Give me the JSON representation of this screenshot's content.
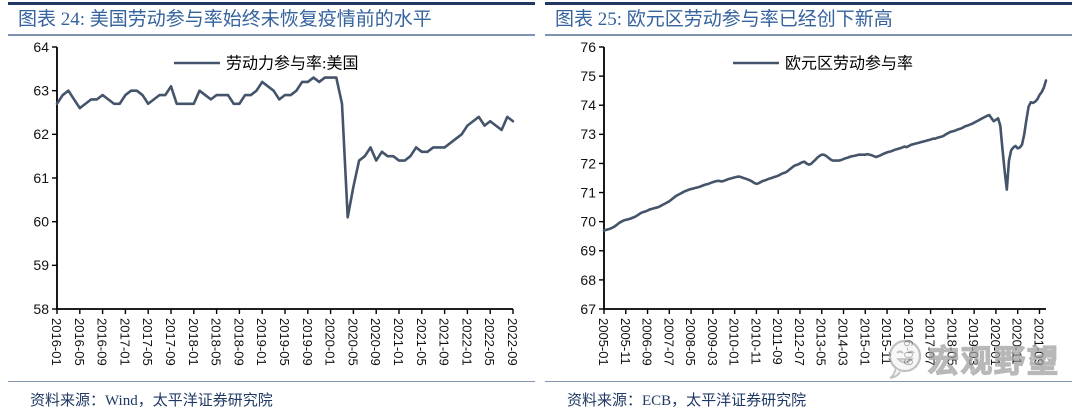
{
  "figures": [
    {
      "title": "图表 24: 美国劳动参与率始终未恢复疫情前的水平",
      "source": "资料来源：Wind，太平洋证券研究院"
    },
    {
      "title": "图表 25: 欧元区劳动参与率已经创下新高",
      "source": "资料来源：ECB，太平洋证券研究院"
    }
  ],
  "watermark": {
    "icon": "face-logo-icon",
    "text": "宏观野望"
  },
  "colors": {
    "series_line": "#44546A",
    "title_text": "#35639E",
    "rule_dark": "#1F3864",
    "rule_light": "#8496B0",
    "source_text": "#1F3864",
    "axis": "#000000",
    "tick_text": "#111111",
    "watermark_gray": "#9e9e9e"
  },
  "chart_data": [
    {
      "type": "line",
      "title": "图表 24: 美国劳动参与率始终未恢复疫情前的水平",
      "legend": "劳动力参与率:美国",
      "ylabel": "",
      "xlabel": "",
      "ylim": [
        58,
        64
      ],
      "yticks": [
        58,
        59,
        60,
        61,
        62,
        63,
        64
      ],
      "x_start": "2016-01",
      "x_frequency": "monthly",
      "xtick_every": 4,
      "xtick_labels": [
        "2016-01",
        "2016-05",
        "2016-09",
        "2017-01",
        "2017-05",
        "2017-09",
        "2018-01",
        "2018-05",
        "2018-09",
        "2019-01",
        "2019-05",
        "2019-09",
        "2020-01",
        "2020-05",
        "2020-09",
        "2021-01",
        "2021-05",
        "2021-09",
        "2022-01",
        "2022-05",
        "2022-09"
      ],
      "grid": false,
      "legend_position": "top-center",
      "line_color": "#44546A",
      "values": [
        62.7,
        62.9,
        63.0,
        62.8,
        62.6,
        62.7,
        62.8,
        62.8,
        62.9,
        62.8,
        62.7,
        62.7,
        62.9,
        63.0,
        63.0,
        62.9,
        62.7,
        62.8,
        62.9,
        62.9,
        63.1,
        62.7,
        62.7,
        62.7,
        62.7,
        63.0,
        62.9,
        62.8,
        62.9,
        62.9,
        62.9,
        62.7,
        62.7,
        62.9,
        62.9,
        63.0,
        63.2,
        63.1,
        63.0,
        62.8,
        62.9,
        62.9,
        63.0,
        63.2,
        63.2,
        63.3,
        63.2,
        63.3,
        63.3,
        63.3,
        62.7,
        60.1,
        60.8,
        61.4,
        61.5,
        61.7,
        61.4,
        61.6,
        61.5,
        61.5,
        61.4,
        61.4,
        61.5,
        61.7,
        61.6,
        61.6,
        61.7,
        61.7,
        61.7,
        61.8,
        61.9,
        62.0,
        62.2,
        62.3,
        62.4,
        62.2,
        62.3,
        62.2,
        62.1,
        62.4,
        62.3
      ],
      "layout": {
        "axisX": 49,
        "plotRight": 505,
        "plotTop": 11,
        "plotBottom": 273,
        "legendX": 166,
        "legendY": 27
      }
    },
    {
      "type": "line",
      "title": "图表 25: 欧元区劳动参与率已经创下新高",
      "legend": "欧元区劳动参与率",
      "ylabel": "",
      "xlabel": "",
      "ylim": [
        67,
        76
      ],
      "yticks": [
        67,
        68,
        69,
        70,
        71,
        72,
        73,
        74,
        75,
        76
      ],
      "x_start": "2005-01",
      "x_frequency": "monthly",
      "xtick_every": 10,
      "xtick_labels": [
        "2005-01",
        "2005-11",
        "2006-09",
        "2007-07",
        "2008-05",
        "2009-03",
        "2010-01",
        "2010-11",
        "2011-09",
        "2012-07",
        "2013-05",
        "2014-03",
        "2015-01",
        "2015-11",
        "2016-09",
        "2017-07",
        "2018-05",
        "2019-03",
        "2020-01",
        "2020-11",
        "2021-09"
      ],
      "grid": false,
      "legend_position": "top-center",
      "line_color": "#44546A",
      "values": [
        69.7,
        69.72,
        69.74,
        69.76,
        69.8,
        69.84,
        69.9,
        69.96,
        70.0,
        70.04,
        70.06,
        70.08,
        70.1,
        70.13,
        70.16,
        70.2,
        70.25,
        70.3,
        70.33,
        70.35,
        70.38,
        70.42,
        70.44,
        70.46,
        70.48,
        70.5,
        70.54,
        70.58,
        70.62,
        70.66,
        70.7,
        70.76,
        70.82,
        70.88,
        70.92,
        70.96,
        71.0,
        71.04,
        71.07,
        71.1,
        71.12,
        71.14,
        71.16,
        71.18,
        71.2,
        71.23,
        71.26,
        71.28,
        71.3,
        71.33,
        71.36,
        71.38,
        71.4,
        71.4,
        71.38,
        71.4,
        71.43,
        71.46,
        71.48,
        71.5,
        71.52,
        71.54,
        71.55,
        71.53,
        71.5,
        71.48,
        71.45,
        71.42,
        71.38,
        71.33,
        71.3,
        71.32,
        71.36,
        71.4,
        71.42,
        71.45,
        71.48,
        71.5,
        71.53,
        71.55,
        71.58,
        71.62,
        71.66,
        71.68,
        71.72,
        71.78,
        71.84,
        71.9,
        71.94,
        71.96,
        72.0,
        72.04,
        72.06,
        72.0,
        71.96,
        71.98,
        72.05,
        72.12,
        72.2,
        72.26,
        72.3,
        72.3,
        72.26,
        72.2,
        72.14,
        72.1,
        72.1,
        72.1,
        72.1,
        72.12,
        72.15,
        72.18,
        72.2,
        72.23,
        72.25,
        72.26,
        72.28,
        72.3,
        72.3,
        72.3,
        72.3,
        72.32,
        72.3,
        72.28,
        72.25,
        72.22,
        72.25,
        72.28,
        72.32,
        72.35,
        72.38,
        72.4,
        72.42,
        72.45,
        72.48,
        72.5,
        72.52,
        72.55,
        72.58,
        72.56,
        72.6,
        72.64,
        72.66,
        72.68,
        72.7,
        72.72,
        72.74,
        72.76,
        72.78,
        72.8,
        72.82,
        72.85,
        72.85,
        72.88,
        72.9,
        72.92,
        72.95,
        73.0,
        73.04,
        73.08,
        73.1,
        73.12,
        73.15,
        73.18,
        73.2,
        73.24,
        73.28,
        73.3,
        73.33,
        73.36,
        73.4,
        73.44,
        73.48,
        73.52,
        73.56,
        73.6,
        73.64,
        73.66,
        73.55,
        73.45,
        73.5,
        73.55,
        73.3,
        72.5,
        71.75,
        71.1,
        72.1,
        72.45,
        72.55,
        72.6,
        72.52,
        72.55,
        72.65,
        73.0,
        73.5,
        73.95,
        74.1,
        74.08,
        74.12,
        74.2,
        74.35,
        74.45,
        74.6,
        74.85
      ],
      "layout": {
        "axisX": 59,
        "plotRight": 501,
        "plotTop": 11,
        "plotBottom": 273,
        "legendX": 188,
        "legendY": 27
      }
    }
  ]
}
